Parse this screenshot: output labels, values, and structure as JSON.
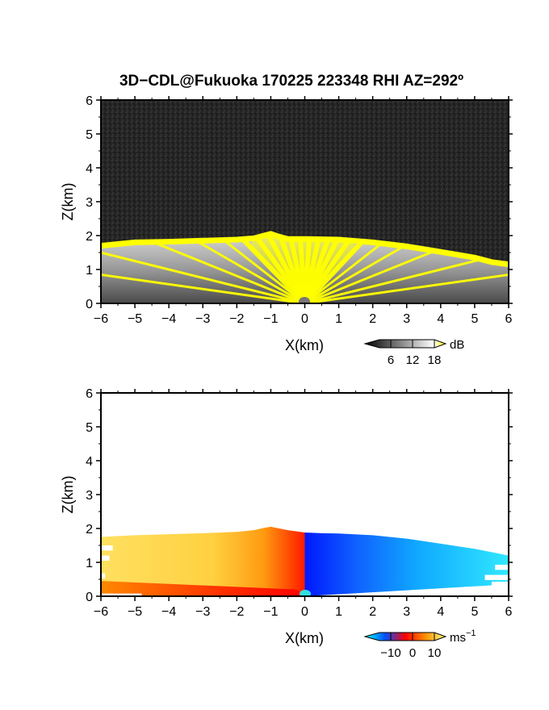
{
  "figure": {
    "title": "3D−CDL@Fukuoka 170225 223348 RHI AZ=292º"
  },
  "chart_data": [
    {
      "type": "heatmap",
      "panel": "reflectivity",
      "xlabel": "X(km)",
      "ylabel": "Z(km)",
      "xlim": [
        -6,
        6
      ],
      "ylim": [
        0,
        6
      ],
      "x_ticks": [
        "−6",
        "−5",
        "−4",
        "−3",
        "−2",
        "−1",
        "0",
        "1",
        "2",
        "3",
        "4",
        "5",
        "6"
      ],
      "y_ticks": [
        "0",
        "1",
        "2",
        "3",
        "4",
        "5",
        "6"
      ],
      "top_profile": {
        "x": [
          -6,
          -5.5,
          -5,
          -4,
          -3,
          -2,
          -1.5,
          -1.2,
          -1,
          -0.8,
          -0.5,
          0,
          1,
          2,
          3,
          4,
          5,
          5.5,
          6
        ],
        "z": [
          1.7,
          1.75,
          1.8,
          1.82,
          1.85,
          1.88,
          1.92,
          2.0,
          2.05,
          1.98,
          1.9,
          1.9,
          1.88,
          1.8,
          1.68,
          1.52,
          1.35,
          1.22,
          1.15
        ]
      },
      "colorbar": {
        "unit": "dB",
        "ticks": [
          "6",
          "12",
          "18"
        ],
        "colors": [
          "#000000",
          "#ffffff",
          "#ffff00"
        ]
      },
      "background_color": "#262626",
      "highlight_color": "#ffff00"
    },
    {
      "type": "heatmap",
      "panel": "doppler-velocity",
      "xlabel": "X(km)",
      "ylabel": "Z(km)",
      "xlim": [
        -6,
        6
      ],
      "ylim": [
        0,
        6
      ],
      "x_ticks": [
        "−6",
        "−5",
        "−4",
        "−3",
        "−2",
        "−1",
        "0",
        "1",
        "2",
        "3",
        "4",
        "5",
        "6"
      ],
      "y_ticks": [
        "0",
        "1",
        "2",
        "3",
        "4",
        "5",
        "6"
      ],
      "top_profile": {
        "x": [
          -6,
          -5,
          -4,
          -3,
          -2,
          -1.5,
          -1.2,
          -1,
          -0.5,
          0,
          0.5,
          1,
          2,
          3,
          4,
          5,
          5.5,
          6
        ],
        "z": [
          1.75,
          1.8,
          1.83,
          1.86,
          1.9,
          1.95,
          2.02,
          2.05,
          1.95,
          1.88,
          1.86,
          1.85,
          1.8,
          1.7,
          1.55,
          1.4,
          1.3,
          1.2
        ]
      },
      "colorbar": {
        "unit": "ms",
        "unit_exponent": "−1",
        "ticks": [
          "−10",
          "0",
          "10"
        ],
        "colors": [
          "#00ffff",
          "#0050ff",
          "#ff0000",
          "#ff9000",
          "#ffff80"
        ]
      },
      "negative_side_colors": [
        "#ff2000",
        "#ff8000",
        "#ffcc00",
        "#fff07a"
      ],
      "positive_side_colors": [
        "#0010ff",
        "#1e90ff",
        "#00c8ff",
        "#20f0ff"
      ]
    }
  ]
}
